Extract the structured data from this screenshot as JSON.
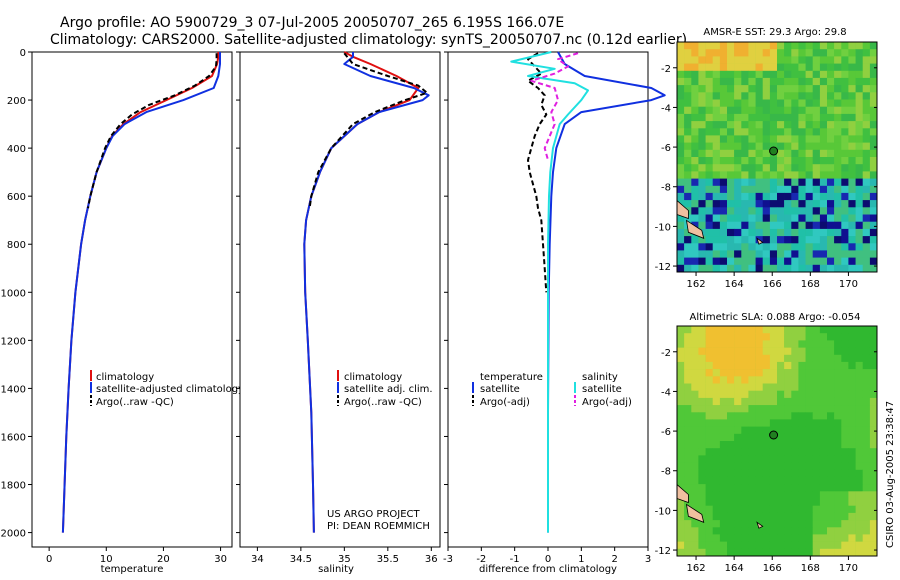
{
  "header": {
    "line1": "Argo profile: AO 5900729_3 07-Jul-2005 20050707_265 6.195S 166.07E",
    "line2": "Climatology: CARS2000. Satellite-adjusted climatology: synTS_20050707.nc (0.12d earlier)"
  },
  "credit": "CSIRO 03-Aug-2005 23:38:47",
  "project": {
    "line1": "US ARGO PROJECT",
    "line2": "PI: DEAN ROEMMICH"
  },
  "colors": {
    "climatology": "#e01010",
    "satellite": "#1030e0",
    "argo": "#000000",
    "sal_satellite": "#20e0e0",
    "sal_argo": "#e020e0",
    "land": "#f0c0a0",
    "float_marker": "#208020"
  },
  "chart_data": [
    {
      "type": "line",
      "id": "temperature",
      "xlabel": "temperature",
      "ylabel": "",
      "xlim": [
        -3,
        32
      ],
      "ylim": [
        2060,
        0
      ],
      "xticks": [
        0,
        10,
        20,
        30
      ],
      "yticks": [
        0,
        200,
        400,
        600,
        800,
        1000,
        1200,
        1400,
        1600,
        1800,
        2000
      ],
      "legend": [
        "climatology",
        "satellite-adjusted climatology",
        "Argo(..raw -QC)"
      ],
      "series": [
        {
          "name": "climatology",
          "color": "#e01010",
          "dash": "",
          "depth": [
            0,
            20,
            50,
            100,
            150,
            200,
            250,
            300,
            350,
            400,
            500,
            600,
            700,
            800,
            1000,
            1200,
            1400,
            1600,
            1800,
            2000
          ],
          "values": [
            29.6,
            29.6,
            29.4,
            28.5,
            25.0,
            20.5,
            16.0,
            13.0,
            11.0,
            10.0,
            8.3,
            7.2,
            6.3,
            5.6,
            4.6,
            3.9,
            3.4,
            3.0,
            2.7,
            2.4
          ]
        },
        {
          "name": "satellite-adjusted climatology",
          "color": "#1030e0",
          "dash": "",
          "depth": [
            0,
            20,
            50,
            100,
            150,
            200,
            250,
            300,
            350,
            400,
            500,
            600,
            700,
            800,
            1000,
            1200,
            1400,
            1600,
            1800,
            2000
          ],
          "values": [
            29.9,
            29.9,
            29.9,
            29.6,
            28.8,
            23.5,
            17.0,
            13.2,
            11.1,
            10.0,
            8.3,
            7.2,
            6.3,
            5.6,
            4.6,
            3.9,
            3.4,
            3.0,
            2.7,
            2.4
          ]
        },
        {
          "name": "Argo(..raw -QC)",
          "color": "#000000",
          "dash": "5,3",
          "depth": [
            5,
            30,
            60,
            100,
            140,
            180,
            220,
            260,
            300,
            350,
            400,
            500,
            600,
            650
          ],
          "values": [
            29.3,
            29.3,
            29.2,
            28.0,
            25.5,
            22.0,
            17.5,
            14.5,
            12.5,
            10.8,
            9.8,
            8.3,
            7.2,
            6.8
          ]
        }
      ]
    },
    {
      "type": "line",
      "id": "salinity",
      "xlabel": "salinity",
      "ylabel": "",
      "xlim": [
        33.8,
        36.1
      ],
      "ylim": [
        2060,
        0
      ],
      "xticks": [
        34,
        34.5,
        35,
        35.5,
        36
      ],
      "yticks": [],
      "legend": [
        "climatology",
        "satellite adj. clim.",
        "Argo(..raw -QC)"
      ],
      "series": [
        {
          "name": "climatology",
          "color": "#e01010",
          "dash": "",
          "depth": [
            0,
            20,
            50,
            100,
            150,
            200,
            250,
            300,
            400,
            500,
            600,
            700,
            800,
            1000,
            1200,
            1500,
            1800,
            2000
          ],
          "values": [
            35.0,
            35.1,
            35.3,
            35.6,
            35.85,
            35.75,
            35.4,
            35.15,
            34.85,
            34.72,
            34.62,
            34.56,
            34.54,
            34.55,
            34.58,
            34.62,
            34.64,
            34.65
          ]
        },
        {
          "name": "satellite adj. clim.",
          "color": "#1030e0",
          "dash": "",
          "depth": [
            0,
            20,
            50,
            100,
            150,
            180,
            200,
            250,
            300,
            400,
            500,
            600,
            700,
            800,
            1000,
            1200,
            1500,
            1800,
            2000
          ],
          "values": [
            35.1,
            35.1,
            35.0,
            35.3,
            35.8,
            35.97,
            35.9,
            35.4,
            35.15,
            34.85,
            34.72,
            34.62,
            34.56,
            34.54,
            34.55,
            34.58,
            34.62,
            34.64,
            34.65
          ]
        },
        {
          "name": "Argo(..raw -QC)",
          "color": "#000000",
          "dash": "5,3",
          "depth": [
            5,
            50,
            100,
            140,
            170,
            200,
            250,
            300,
            400,
            500,
            600,
            650
          ],
          "values": [
            35.0,
            35.1,
            35.5,
            35.85,
            35.95,
            35.7,
            35.35,
            35.1,
            34.85,
            34.7,
            34.62,
            34.6
          ]
        }
      ]
    },
    {
      "type": "line",
      "id": "difference",
      "xlabel": "difference from climatology",
      "ylabel": "",
      "xlim": [
        -3,
        3
      ],
      "ylim": [
        2060,
        0
      ],
      "xticks": [
        -3,
        -2,
        -1,
        0,
        1,
        2,
        3
      ],
      "yticks": [],
      "legend": [
        "temperature",
        "satellite",
        "Argo(-adj)",
        "salinity",
        "satellite",
        "Argo(-adj)"
      ],
      "series": [
        {
          "name": "temperature satellite",
          "color": "#1030e0",
          "dash": "",
          "depth": [
            0,
            50,
            100,
            150,
            180,
            200,
            250,
            300,
            400,
            500,
            600,
            800,
            1000,
            1500,
            2000
          ],
          "values": [
            0.3,
            0.5,
            1.1,
            3.1,
            3.5,
            3.1,
            1.0,
            0.5,
            0.25,
            0.15,
            0.1,
            0.05,
            0.02,
            0.0,
            0.0
          ]
        },
        {
          "name": "temperature Argo(-adj)",
          "color": "#000000",
          "dash": "5,3",
          "depth": [
            5,
            30,
            60,
            90,
            120,
            150,
            180,
            220,
            260,
            300,
            350,
            400,
            450,
            500,
            550,
            600,
            650,
            700,
            800,
            900,
            1000
          ],
          "values": [
            -0.3,
            -0.6,
            -0.4,
            -0.2,
            -0.6,
            -0.3,
            -0.1,
            -0.2,
            -0.05,
            -0.25,
            -0.4,
            -0.5,
            -0.6,
            -0.55,
            -0.45,
            -0.35,
            -0.3,
            -0.2,
            -0.15,
            -0.1,
            -0.05
          ]
        },
        {
          "name": "salinity satellite",
          "color": "#20e0e0",
          "dash": "",
          "depth": [
            0,
            40,
            70,
            100,
            130,
            160,
            200,
            260,
            300,
            400,
            500,
            600,
            800,
            1000,
            1500,
            2000
          ],
          "values": [
            0.1,
            -1.1,
            0.2,
            -0.6,
            0.8,
            1.2,
            1.0,
            0.6,
            0.35,
            0.15,
            0.07,
            0.03,
            0.0,
            0.0,
            0.0,
            0.0
          ]
        },
        {
          "name": "salinity Argo(-adj)",
          "color": "#e020e0",
          "dash": "5,3",
          "depth": [
            5,
            30,
            60,
            90,
            120,
            150,
            200,
            250,
            300,
            350,
            400,
            450
          ],
          "values": [
            0.9,
            0.3,
            0.6,
            0.2,
            -0.5,
            0.2,
            0.3,
            0.1,
            0.2,
            0.05,
            -0.1,
            0.0
          ]
        }
      ]
    },
    {
      "type": "heatmap",
      "id": "sst_map",
      "title": "AMSR-E SST: 29.3 Argo: 29.8",
      "xlim": [
        161,
        171.5
      ],
      "ylim": [
        -12.3,
        -0.7
      ],
      "xticks": [
        162,
        164,
        166,
        168,
        170
      ],
      "yticks": [
        -2,
        -4,
        -6,
        -8,
        -10,
        -12
      ],
      "float_position": [
        166.07,
        -6.195
      ]
    },
    {
      "type": "heatmap",
      "id": "sla_map",
      "title": "Altimetric SLA: 0.088 Argo: -0.054",
      "xlim": [
        161,
        171.5
      ],
      "ylim": [
        -12.3,
        -0.7
      ],
      "xticks": [
        162,
        164,
        166,
        168,
        170
      ],
      "yticks": [
        -2,
        -4,
        -6,
        -8,
        -10,
        -12
      ],
      "float_position": [
        166.07,
        -6.195
      ]
    }
  ]
}
